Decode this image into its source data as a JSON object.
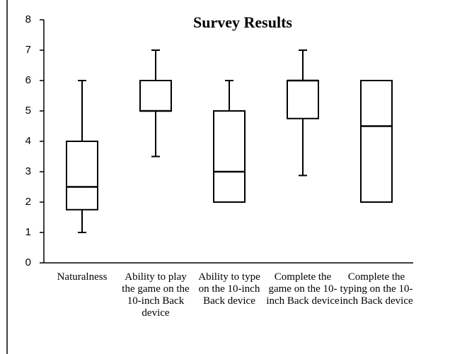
{
  "chart_data": {
    "type": "box",
    "title": "Survey Results",
    "categories": [
      "Naturalness",
      "Ability to play the game on the 10-inch Back device",
      "Ability to type on the 10-inch Back device",
      "Complete the game on the 10-inch Back device",
      "Complete the typing on the 10-inch Back device"
    ],
    "boxes": [
      {
        "min": 1,
        "q1": 1.75,
        "median": 2.5,
        "q3": 4,
        "max": 6
      },
      {
        "min": 3.5,
        "q1": 5,
        "median": 5,
        "q3": 6,
        "max": 7
      },
      {
        "min": 2,
        "q1": 2,
        "median": 3,
        "q3": 5,
        "max": 6
      },
      {
        "min": 2.875,
        "q1": 4.75,
        "median": 6,
        "q3": 6,
        "max": 7
      },
      {
        "min": 2,
        "q1": 2,
        "median": 4.5,
        "q3": 6,
        "max": 6
      }
    ],
    "color": "#000000",
    "ylim": [
      0,
      8
    ],
    "yticks": [
      0,
      1,
      2,
      3,
      4,
      5,
      6,
      7,
      8
    ]
  }
}
